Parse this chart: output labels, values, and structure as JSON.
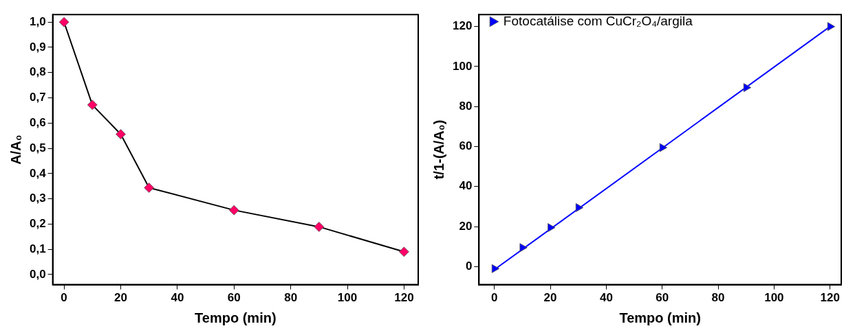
{
  "chart_data": [
    {
      "type": "line",
      "xlabel": "Tempo (min)",
      "ylabel": "A/A₀",
      "x": [
        0,
        10,
        20,
        30,
        60,
        90,
        120
      ],
      "series": [
        {
          "color": "#ff0066",
          "values": [
            1.0,
            0.672,
            0.556,
            0.344,
            0.255,
            0.189,
            0.09
          ],
          "marker": "diamond"
        }
      ],
      "xlim": [
        -4,
        125
      ],
      "xticks": [
        0,
        20,
        40,
        60,
        80,
        100,
        120
      ],
      "ylim": [
        -0.04,
        1.03
      ],
      "yticks": [
        {
          "value": 0,
          "label": "0,0"
        },
        {
          "value": 0.1,
          "label": "0,1"
        },
        {
          "value": 0.2,
          "label": "0,2"
        },
        {
          "value": 0.3,
          "label": "0,3"
        },
        {
          "value": 0.4,
          "label": "0,4"
        },
        {
          "value": 0.5,
          "label": "0,5"
        },
        {
          "value": 0.6,
          "label": "0,6"
        },
        {
          "value": 0.7,
          "label": "0,7"
        },
        {
          "value": 0.8,
          "label": "0,8"
        },
        {
          "value": 0.9,
          "label": "0,9"
        },
        {
          "value": 1.0,
          "label": "1,0"
        }
      ],
      "grid": false,
      "legend": false
    },
    {
      "type": "scatter",
      "xlabel": "Tempo (min)",
      "ylabel": "t/1-(A/A₀)",
      "series": [
        {
          "name": "Fotocatálise com CuCr₂O₄/argila",
          "color": "#0000ff",
          "x": [
            0,
            10,
            20,
            30,
            60,
            90,
            120
          ],
          "values": [
            -1,
            9.5,
            19.5,
            29.5,
            59.5,
            89.5,
            120
          ],
          "marker": "triangle"
        },
        {
          "type": "line",
          "color": "#0000ff",
          "x": [
            0,
            120
          ],
          "values": [
            -1.5,
            120
          ],
          "marker": "none"
        }
      ],
      "xlim": [
        -5.5,
        124
      ],
      "xticks": [
        0,
        20,
        40,
        60,
        80,
        100,
        120
      ],
      "ylim": [
        -9,
        126
      ],
      "yticks": [
        0,
        20,
        40,
        60,
        80,
        100,
        120
      ],
      "grid": false,
      "legend": "top left"
    }
  ]
}
